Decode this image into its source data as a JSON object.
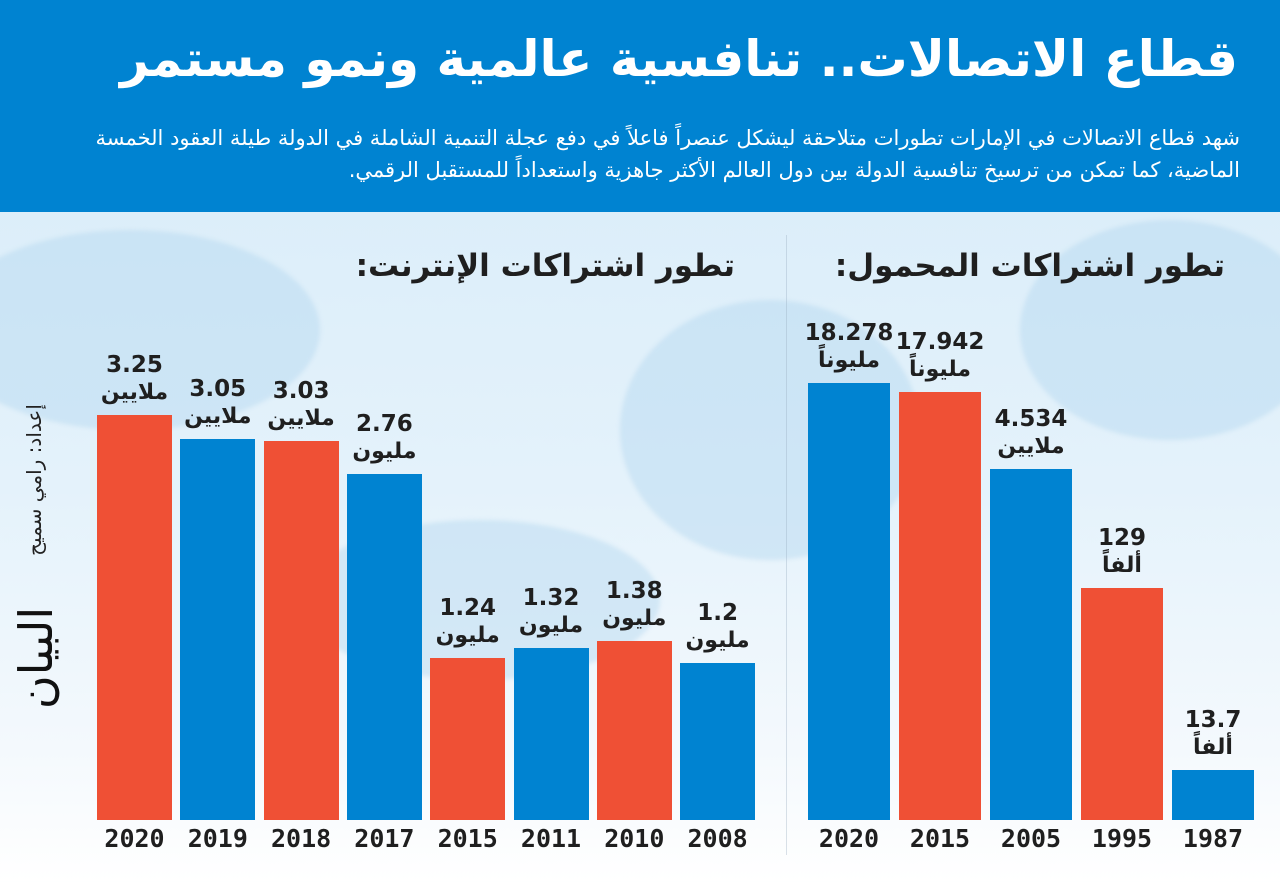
{
  "header": {
    "title": "قطاع الاتصالات.. تنافسية عالمية ونمو مستمر",
    "subtitle": "شهد قطاع الاتصالات في الإمارات تطورات متلاحقة ليشكل عنصراً فاعلاً في دفع عجلة التنمية الشاملة في الدولة طيلة العقود الخمسة الماضية، كما تمكن من ترسيخ تنافسية الدولة بين دول العالم الأكثر جاهزية واستعداداً للمستقبل الرقمي."
  },
  "credit": "إعداد: رامي سميح",
  "logo": "البيان",
  "colors": {
    "header": "#0083d1",
    "blue": "#0083d1",
    "red": "#ef5035",
    "text": "#1f1f1f"
  },
  "chart_data": [
    {
      "type": "bar",
      "title": "تطور اشتراكات الإنترنت:",
      "xlabel": "",
      "ylabel": "",
      "categories": [
        "2020",
        "2019",
        "2018",
        "2017",
        "2015",
        "2011",
        "2010",
        "2008"
      ],
      "values": [
        3.25,
        3.05,
        3.03,
        2.76,
        1.24,
        1.32,
        1.38,
        1.2
      ],
      "units_value": "million",
      "labels": [
        {
          "num": "3.25",
          "unit": "ملايين"
        },
        {
          "num": "3.05",
          "unit": "ملايين"
        },
        {
          "num": "3.03",
          "unit": "ملايين"
        },
        {
          "num": "2.76",
          "unit": "مليون"
        },
        {
          "num": "1.24",
          "unit": "مليون"
        },
        {
          "num": "1.32",
          "unit": "مليون"
        },
        {
          "num": "1.38",
          "unit": "مليون"
        },
        {
          "num": "1.2",
          "unit": "مليون"
        }
      ],
      "bar_colors": [
        "red",
        "blue",
        "red",
        "blue",
        "red",
        "blue",
        "red",
        "blue"
      ],
      "grid": false,
      "legend": "none"
    },
    {
      "type": "bar",
      "title": "تطور اشتراكات المحمول:",
      "xlabel": "",
      "ylabel": "",
      "categories": [
        "2020",
        "2015",
        "2005",
        "1995",
        "1987"
      ],
      "values": [
        18.278,
        17.942,
        4.534,
        0.129,
        0.0137
      ],
      "units_value": "million",
      "labels": [
        {
          "num": "18.278",
          "unit": "مليوناً"
        },
        {
          "num": "17.942",
          "unit": "مليوناً"
        },
        {
          "num": "4.534",
          "unit": "ملايين"
        },
        {
          "num": "129",
          "unit": "ألفاً"
        },
        {
          "num": "13.7",
          "unit": "ألفاً"
        }
      ],
      "bar_colors": [
        "blue",
        "red",
        "blue",
        "red",
        "blue"
      ],
      "grid": false,
      "legend": "none"
    }
  ]
}
